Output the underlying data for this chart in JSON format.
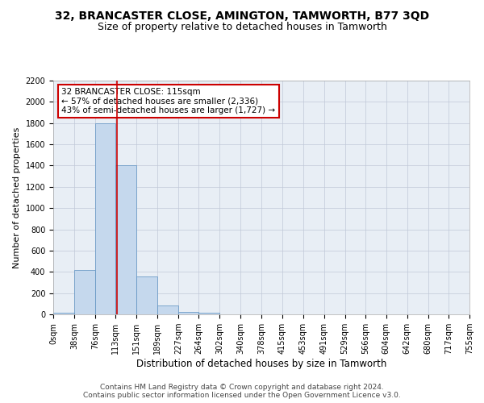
{
  "title": "32, BRANCASTER CLOSE, AMINGTON, TAMWORTH, B77 3QD",
  "subtitle": "Size of property relative to detached houses in Tamworth",
  "xlabel": "Distribution of detached houses by size in Tamworth",
  "ylabel": "Number of detached properties",
  "footer_line1": "Contains HM Land Registry data © Crown copyright and database right 2024.",
  "footer_line2": "Contains public sector information licensed under the Open Government Licence v3.0.",
  "annotation_line1": "32 BRANCASTER CLOSE: 115sqm",
  "annotation_line2": "← 57% of detached houses are smaller (2,336)",
  "annotation_line3": "43% of semi-detached houses are larger (1,727) →",
  "property_size": 115,
  "bin_edges": [
    0,
    38,
    76,
    113,
    151,
    189,
    227,
    264,
    302,
    340,
    378,
    415,
    453,
    491,
    529,
    566,
    604,
    642,
    680,
    717,
    755
  ],
  "bar_heights": [
    15,
    420,
    1800,
    1400,
    360,
    80,
    25,
    15,
    0,
    0,
    0,
    0,
    0,
    0,
    0,
    0,
    0,
    0,
    0,
    0
  ],
  "bar_color": "#c5d8ed",
  "bar_edge_color": "#5a8fc0",
  "red_line_color": "#cc0000",
  "annotation_box_color": "#cc0000",
  "background_color": "#ffffff",
  "axes_background": "#e8eef5",
  "grid_color": "#c0c8d8",
  "ylim": [
    0,
    2200
  ],
  "yticks": [
    0,
    200,
    400,
    600,
    800,
    1000,
    1200,
    1400,
    1600,
    1800,
    2000,
    2200
  ],
  "title_fontsize": 10,
  "subtitle_fontsize": 9,
  "xlabel_fontsize": 8.5,
  "ylabel_fontsize": 8,
  "tick_fontsize": 7,
  "annotation_fontsize": 7.5,
  "footer_fontsize": 6.5
}
